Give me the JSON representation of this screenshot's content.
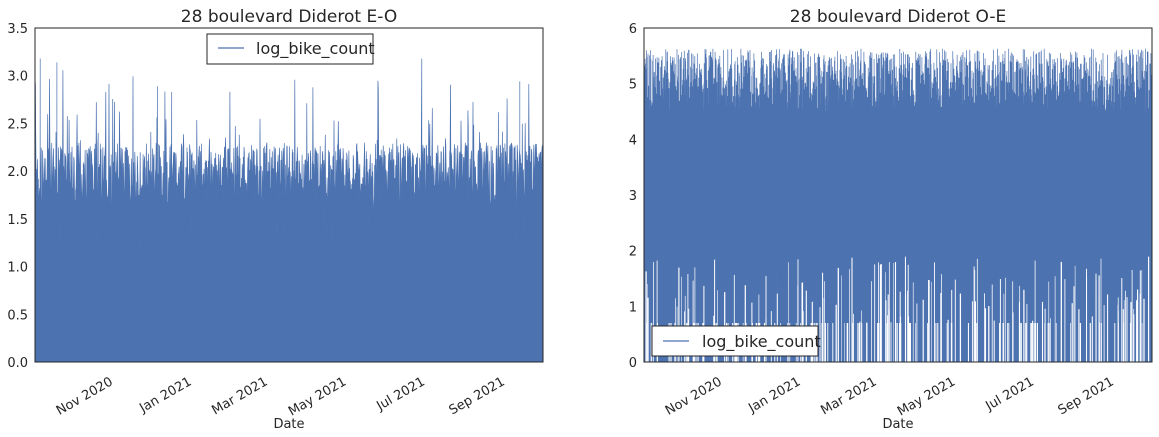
{
  "chart_data": [
    {
      "type": "area",
      "title": "28 boulevard Diderot E-O",
      "xlabel": "Date",
      "ylabel": "",
      "ylim": [
        0,
        3.5
      ],
      "yticks": [
        "0.0",
        "0.5",
        "1.0",
        "1.5",
        "2.0",
        "2.5",
        "3.0",
        "3.5"
      ],
      "xlim": [
        "2020-09-01",
        "2021-09-30"
      ],
      "xticks": [
        {
          "date": "2020-11-01",
          "label": "Nov 2020"
        },
        {
          "date": "2021-01-01",
          "label": "Jan 2021"
        },
        {
          "date": "2021-03-01",
          "label": "Mar 2021"
        },
        {
          "date": "2021-05-01",
          "label": "May 2021"
        },
        {
          "date": "2021-07-01",
          "label": "Jul 2021"
        },
        {
          "date": "2021-09-01",
          "label": "Sep 2021"
        }
      ],
      "legend": {
        "entries": [
          "log_bike_count"
        ],
        "placement": "top-center"
      },
      "grid": false,
      "color": "#4c72b0",
      "series": [
        {
          "name": "log_bike_count",
          "typical_low": 1.6,
          "typical_high": 2.3,
          "max": 3.18,
          "min": 0.69,
          "points": [
            {
              "x": "2020-09-05",
              "y": 3.18
            },
            {
              "x": "2020-09-18",
              "y": 3.14
            },
            {
              "x": "2020-10-20",
              "y": 2.4
            },
            {
              "x": "2020-12-05",
              "y": 2.89
            },
            {
              "x": "2020-12-16",
              "y": 2.83
            },
            {
              "x": "2020-12-28",
              "y": 1.39
            },
            {
              "x": "2021-01-03",
              "y": 0.69
            },
            {
              "x": "2021-06-28",
              "y": 3.18
            },
            {
              "x": "2021-08-25",
              "y": 1.1
            },
            {
              "x": "2021-09-12",
              "y": 2.94
            }
          ]
        }
      ]
    },
    {
      "type": "area",
      "title": "28 boulevard Diderot O-E",
      "xlabel": "Date",
      "ylabel": "",
      "ylim": [
        0,
        6
      ],
      "yticks": [
        "0",
        "1",
        "2",
        "3",
        "4",
        "5",
        "6"
      ],
      "xlim": [
        "2020-09-01",
        "2021-09-30"
      ],
      "xticks": [
        {
          "date": "2020-11-01",
          "label": "Nov 2020"
        },
        {
          "date": "2021-01-01",
          "label": "Jan 2021"
        },
        {
          "date": "2021-03-01",
          "label": "Mar 2021"
        },
        {
          "date": "2021-05-01",
          "label": "May 2021"
        },
        {
          "date": "2021-07-01",
          "label": "Jul 2021"
        },
        {
          "date": "2021-09-01",
          "label": "Sep 2021"
        }
      ],
      "legend": {
        "entries": [
          "log_bike_count"
        ],
        "placement": "bottom-left"
      },
      "grid": false,
      "color": "#4c72b0",
      "series": [
        {
          "name": "log_bike_count",
          "typical_low": 0.7,
          "typical_high": 5.0,
          "max": 5.63,
          "min": 0,
          "points": [
            {
              "x": "2020-09-03",
              "y": 5.6
            },
            {
              "x": "2020-10-15",
              "y": 5.2
            },
            {
              "x": "2020-11-20",
              "y": 4.3
            },
            {
              "x": "2020-12-12",
              "y": 5.4
            },
            {
              "x": "2020-12-28",
              "y": 2.6
            },
            {
              "x": "2021-03-15",
              "y": 5.1
            },
            {
              "x": "2021-05-10",
              "y": 5.3
            },
            {
              "x": "2021-07-05",
              "y": 5.2
            },
            {
              "x": "2021-09-25",
              "y": 5.63
            }
          ]
        }
      ]
    }
  ]
}
